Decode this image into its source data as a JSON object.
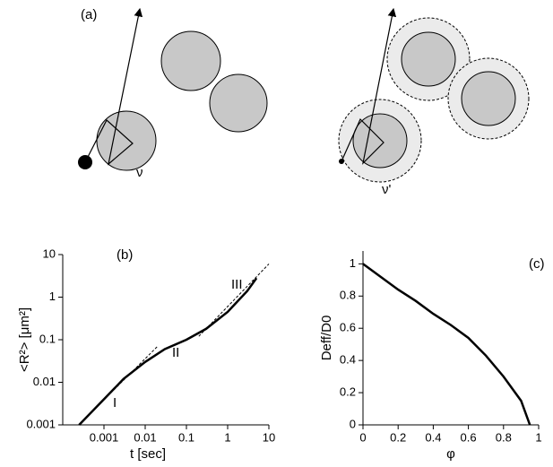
{
  "diagram": {
    "panel_label": "(a)",
    "left_label": "ν",
    "right_label": "ν'"
  },
  "chart_data": [
    {
      "type": "line",
      "panel_label": "(b)",
      "xlabel": "t [sec]",
      "ylabel": "<R²> [μm²]",
      "xlog": true,
      "ylog": true,
      "xlim": [
        0.0001,
        10
      ],
      "ylim": [
        0.001,
        10
      ],
      "xticks": [
        0.001,
        0.01,
        0.1,
        1,
        10
      ],
      "yticks": [
        0.001,
        0.01,
        0.1,
        1,
        10
      ],
      "annotations": [
        "I",
        "II",
        "III"
      ],
      "series": [
        {
          "color": "#000000",
          "style": "solid",
          "x": [
            0.00025,
            0.001,
            0.003,
            0.01,
            0.03,
            0.1,
            0.3,
            1,
            3,
            5
          ],
          "values": [
            0.001,
            0.004,
            0.012,
            0.03,
            0.06,
            0.1,
            0.18,
            0.45,
            1.4,
            2.8
          ]
        },
        {
          "color": "#000000",
          "style": "dashed",
          "x": [
            0.0005,
            0.02
          ],
          "values": [
            0.002,
            0.07
          ]
        },
        {
          "color": "#000000",
          "style": "dashed",
          "x": [
            0.2,
            10
          ],
          "values": [
            0.12,
            6
          ]
        }
      ]
    },
    {
      "type": "line",
      "panel_label": "(c)",
      "xlabel": "φ",
      "ylabel": "Deff/D0",
      "xlog": false,
      "ylog": false,
      "xlim": [
        0,
        1
      ],
      "ylim": [
        0,
        1.08
      ],
      "xticks": [
        0,
        0.2,
        0.4,
        0.6,
        0.8,
        1
      ],
      "yticks": [
        0,
        0.2,
        0.4,
        0.6,
        0.8,
        1
      ],
      "series": [
        {
          "color": "#000000",
          "style": "solid",
          "x": [
            0,
            0.1,
            0.2,
            0.3,
            0.4,
            0.5,
            0.6,
            0.7,
            0.8,
            0.9,
            0.95
          ],
          "values": [
            1,
            0.92,
            0.84,
            0.77,
            0.69,
            0.62,
            0.54,
            0.43,
            0.3,
            0.15,
            0
          ]
        }
      ]
    }
  ]
}
